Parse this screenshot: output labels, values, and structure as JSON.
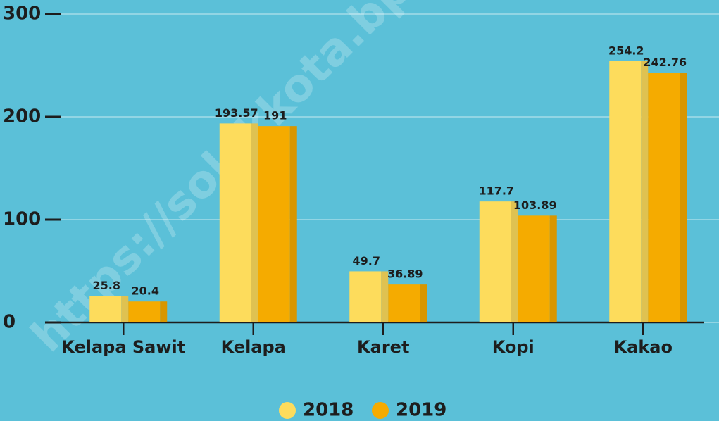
{
  "chart_data": {
    "type": "bar",
    "categories": [
      "Kelapa Sawit",
      "Kelapa",
      "Karet",
      "Kopi",
      "Kakao"
    ],
    "series": [
      {
        "name": "2018",
        "color": "#fddc5c",
        "values": [
          25.8,
          193.57,
          49.7,
          117.7,
          254.2
        ]
      },
      {
        "name": "2019",
        "color": "#f5ab00",
        "values": [
          20.4,
          191,
          36.89,
          103.89,
          242.76
        ]
      }
    ],
    "ylim": [
      0,
      300
    ],
    "yticks": [
      0,
      100,
      200,
      300
    ],
    "grid": true,
    "watermark": "https://solokkota.bps"
  }
}
